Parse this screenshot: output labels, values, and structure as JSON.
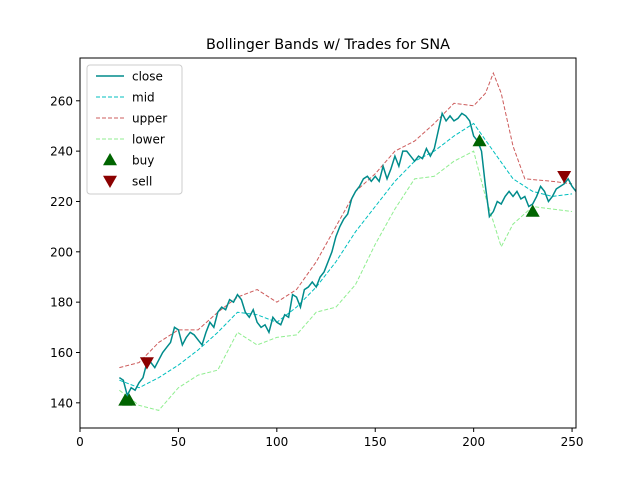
{
  "chart_data": {
    "type": "line",
    "title": "Bollinger Bands w/ Trades for SNA",
    "xlabel": "",
    "ylabel": "",
    "xlim": [
      0,
      252
    ],
    "ylim": [
      130,
      277
    ],
    "x_ticks": [
      0,
      50,
      100,
      150,
      200,
      250
    ],
    "y_ticks": [
      140,
      160,
      180,
      200,
      220,
      240,
      260
    ],
    "grid": false,
    "legend_position": "top-left",
    "series": [
      {
        "name": "close",
        "style": "solid",
        "color": "#008b8b",
        "points": [
          [
            20,
            150
          ],
          [
            22,
            149
          ],
          [
            24,
            143
          ],
          [
            26,
            146
          ],
          [
            28,
            145
          ],
          [
            30,
            148
          ],
          [
            32,
            150
          ],
          [
            34,
            156
          ],
          [
            36,
            156
          ],
          [
            38,
            154
          ],
          [
            40,
            157
          ],
          [
            42,
            160
          ],
          [
            44,
            162
          ],
          [
            46,
            164
          ],
          [
            48,
            170
          ],
          [
            50,
            169
          ],
          [
            52,
            163
          ],
          [
            54,
            166
          ],
          [
            56,
            168
          ],
          [
            58,
            167
          ],
          [
            60,
            165
          ],
          [
            62,
            163
          ],
          [
            64,
            168
          ],
          [
            66,
            172
          ],
          [
            68,
            170
          ],
          [
            70,
            176
          ],
          [
            72,
            178
          ],
          [
            74,
            177
          ],
          [
            76,
            181
          ],
          [
            78,
            180
          ],
          [
            80,
            183
          ],
          [
            82,
            181
          ],
          [
            84,
            176
          ],
          [
            86,
            174
          ],
          [
            88,
            177
          ],
          [
            90,
            172
          ],
          [
            92,
            170
          ],
          [
            94,
            171
          ],
          [
            96,
            168
          ],
          [
            98,
            174
          ],
          [
            100,
            172
          ],
          [
            102,
            171
          ],
          [
            104,
            175
          ],
          [
            106,
            174
          ],
          [
            108,
            183
          ],
          [
            110,
            182
          ],
          [
            112,
            178
          ],
          [
            114,
            185
          ],
          [
            116,
            186
          ],
          [
            118,
            188
          ],
          [
            120,
            186
          ],
          [
            122,
            190
          ],
          [
            124,
            192
          ],
          [
            126,
            196
          ],
          [
            128,
            200
          ],
          [
            130,
            206
          ],
          [
            132,
            210
          ],
          [
            134,
            213
          ],
          [
            136,
            215
          ],
          [
            138,
            221
          ],
          [
            140,
            224
          ],
          [
            142,
            226
          ],
          [
            144,
            229
          ],
          [
            146,
            230
          ],
          [
            148,
            228
          ],
          [
            150,
            230
          ],
          [
            152,
            228
          ],
          [
            154,
            234
          ],
          [
            156,
            229
          ],
          [
            158,
            233
          ],
          [
            160,
            238
          ],
          [
            162,
            234
          ],
          [
            164,
            240
          ],
          [
            166,
            240
          ],
          [
            168,
            238
          ],
          [
            170,
            236
          ],
          [
            172,
            238
          ],
          [
            174,
            237
          ],
          [
            176,
            241
          ],
          [
            178,
            238
          ],
          [
            180,
            241
          ],
          [
            182,
            248
          ],
          [
            184,
            255
          ],
          [
            186,
            252
          ],
          [
            188,
            254
          ],
          [
            190,
            252
          ],
          [
            192,
            253
          ],
          [
            194,
            255
          ],
          [
            196,
            254
          ],
          [
            198,
            252
          ],
          [
            200,
            246
          ],
          [
            202,
            244
          ],
          [
            204,
            240
          ],
          [
            206,
            226
          ],
          [
            208,
            214
          ],
          [
            210,
            216
          ],
          [
            212,
            220
          ],
          [
            214,
            219
          ],
          [
            216,
            222
          ],
          [
            218,
            224
          ],
          [
            220,
            222
          ],
          [
            222,
            224
          ],
          [
            224,
            221
          ],
          [
            226,
            222
          ],
          [
            228,
            218
          ],
          [
            230,
            219
          ],
          [
            232,
            222
          ],
          [
            234,
            226
          ],
          [
            236,
            224
          ],
          [
            238,
            220
          ],
          [
            240,
            222
          ],
          [
            242,
            225
          ],
          [
            244,
            226
          ],
          [
            246,
            227
          ],
          [
            248,
            229
          ],
          [
            250,
            226
          ],
          [
            252,
            224
          ]
        ]
      },
      {
        "name": "mid",
        "style": "dashed",
        "color": "#00bfbf",
        "points": [
          [
            20,
            149
          ],
          [
            30,
            146
          ],
          [
            40,
            150
          ],
          [
            50,
            155
          ],
          [
            60,
            161
          ],
          [
            70,
            168
          ],
          [
            80,
            176
          ],
          [
            90,
            175
          ],
          [
            100,
            172
          ],
          [
            110,
            178
          ],
          [
            120,
            186
          ],
          [
            130,
            196
          ],
          [
            140,
            208
          ],
          [
            150,
            218
          ],
          [
            160,
            228
          ],
          [
            170,
            236
          ],
          [
            180,
            240
          ],
          [
            190,
            246
          ],
          [
            200,
            251
          ],
          [
            210,
            240
          ],
          [
            220,
            229
          ],
          [
            230,
            224
          ],
          [
            240,
            222
          ],
          [
            250,
            223
          ]
        ]
      },
      {
        "name": "upper",
        "style": "dashed",
        "color": "#cd5c5c",
        "points": [
          [
            20,
            154
          ],
          [
            30,
            156
          ],
          [
            40,
            164
          ],
          [
            50,
            169
          ],
          [
            60,
            169
          ],
          [
            70,
            176
          ],
          [
            80,
            182
          ],
          [
            90,
            185
          ],
          [
            100,
            180
          ],
          [
            110,
            185
          ],
          [
            120,
            196
          ],
          [
            130,
            210
          ],
          [
            140,
            224
          ],
          [
            150,
            231
          ],
          [
            160,
            240
          ],
          [
            170,
            244
          ],
          [
            180,
            251
          ],
          [
            190,
            259
          ],
          [
            200,
            258
          ],
          [
            206,
            263
          ],
          [
            210,
            271
          ],
          [
            214,
            263
          ],
          [
            220,
            242
          ],
          [
            226,
            229
          ],
          [
            240,
            228
          ],
          [
            250,
            227
          ]
        ]
      },
      {
        "name": "lower",
        "style": "dashed",
        "color": "#90ee90",
        "points": [
          [
            20,
            145
          ],
          [
            30,
            139
          ],
          [
            40,
            137
          ],
          [
            50,
            146
          ],
          [
            60,
            151
          ],
          [
            70,
            153
          ],
          [
            80,
            168
          ],
          [
            90,
            163
          ],
          [
            100,
            166
          ],
          [
            110,
            167
          ],
          [
            120,
            176
          ],
          [
            130,
            178
          ],
          [
            140,
            187
          ],
          [
            150,
            203
          ],
          [
            160,
            217
          ],
          [
            170,
            229
          ],
          [
            180,
            230
          ],
          [
            190,
            236
          ],
          [
            200,
            240
          ],
          [
            206,
            222
          ],
          [
            214,
            202
          ],
          [
            220,
            211
          ],
          [
            230,
            218
          ],
          [
            240,
            217
          ],
          [
            250,
            216
          ]
        ]
      }
    ],
    "markers": [
      {
        "name": "buy",
        "shape": "triangle-up",
        "color": "#006400",
        "points": [
          [
            23,
            141
          ],
          [
            25,
            141
          ],
          [
            203,
            244
          ],
          [
            230,
            216
          ]
        ]
      },
      {
        "name": "sell",
        "shape": "triangle-down",
        "color": "#8b0000",
        "points": [
          [
            34,
            156
          ],
          [
            246,
            230
          ]
        ]
      }
    ]
  }
}
